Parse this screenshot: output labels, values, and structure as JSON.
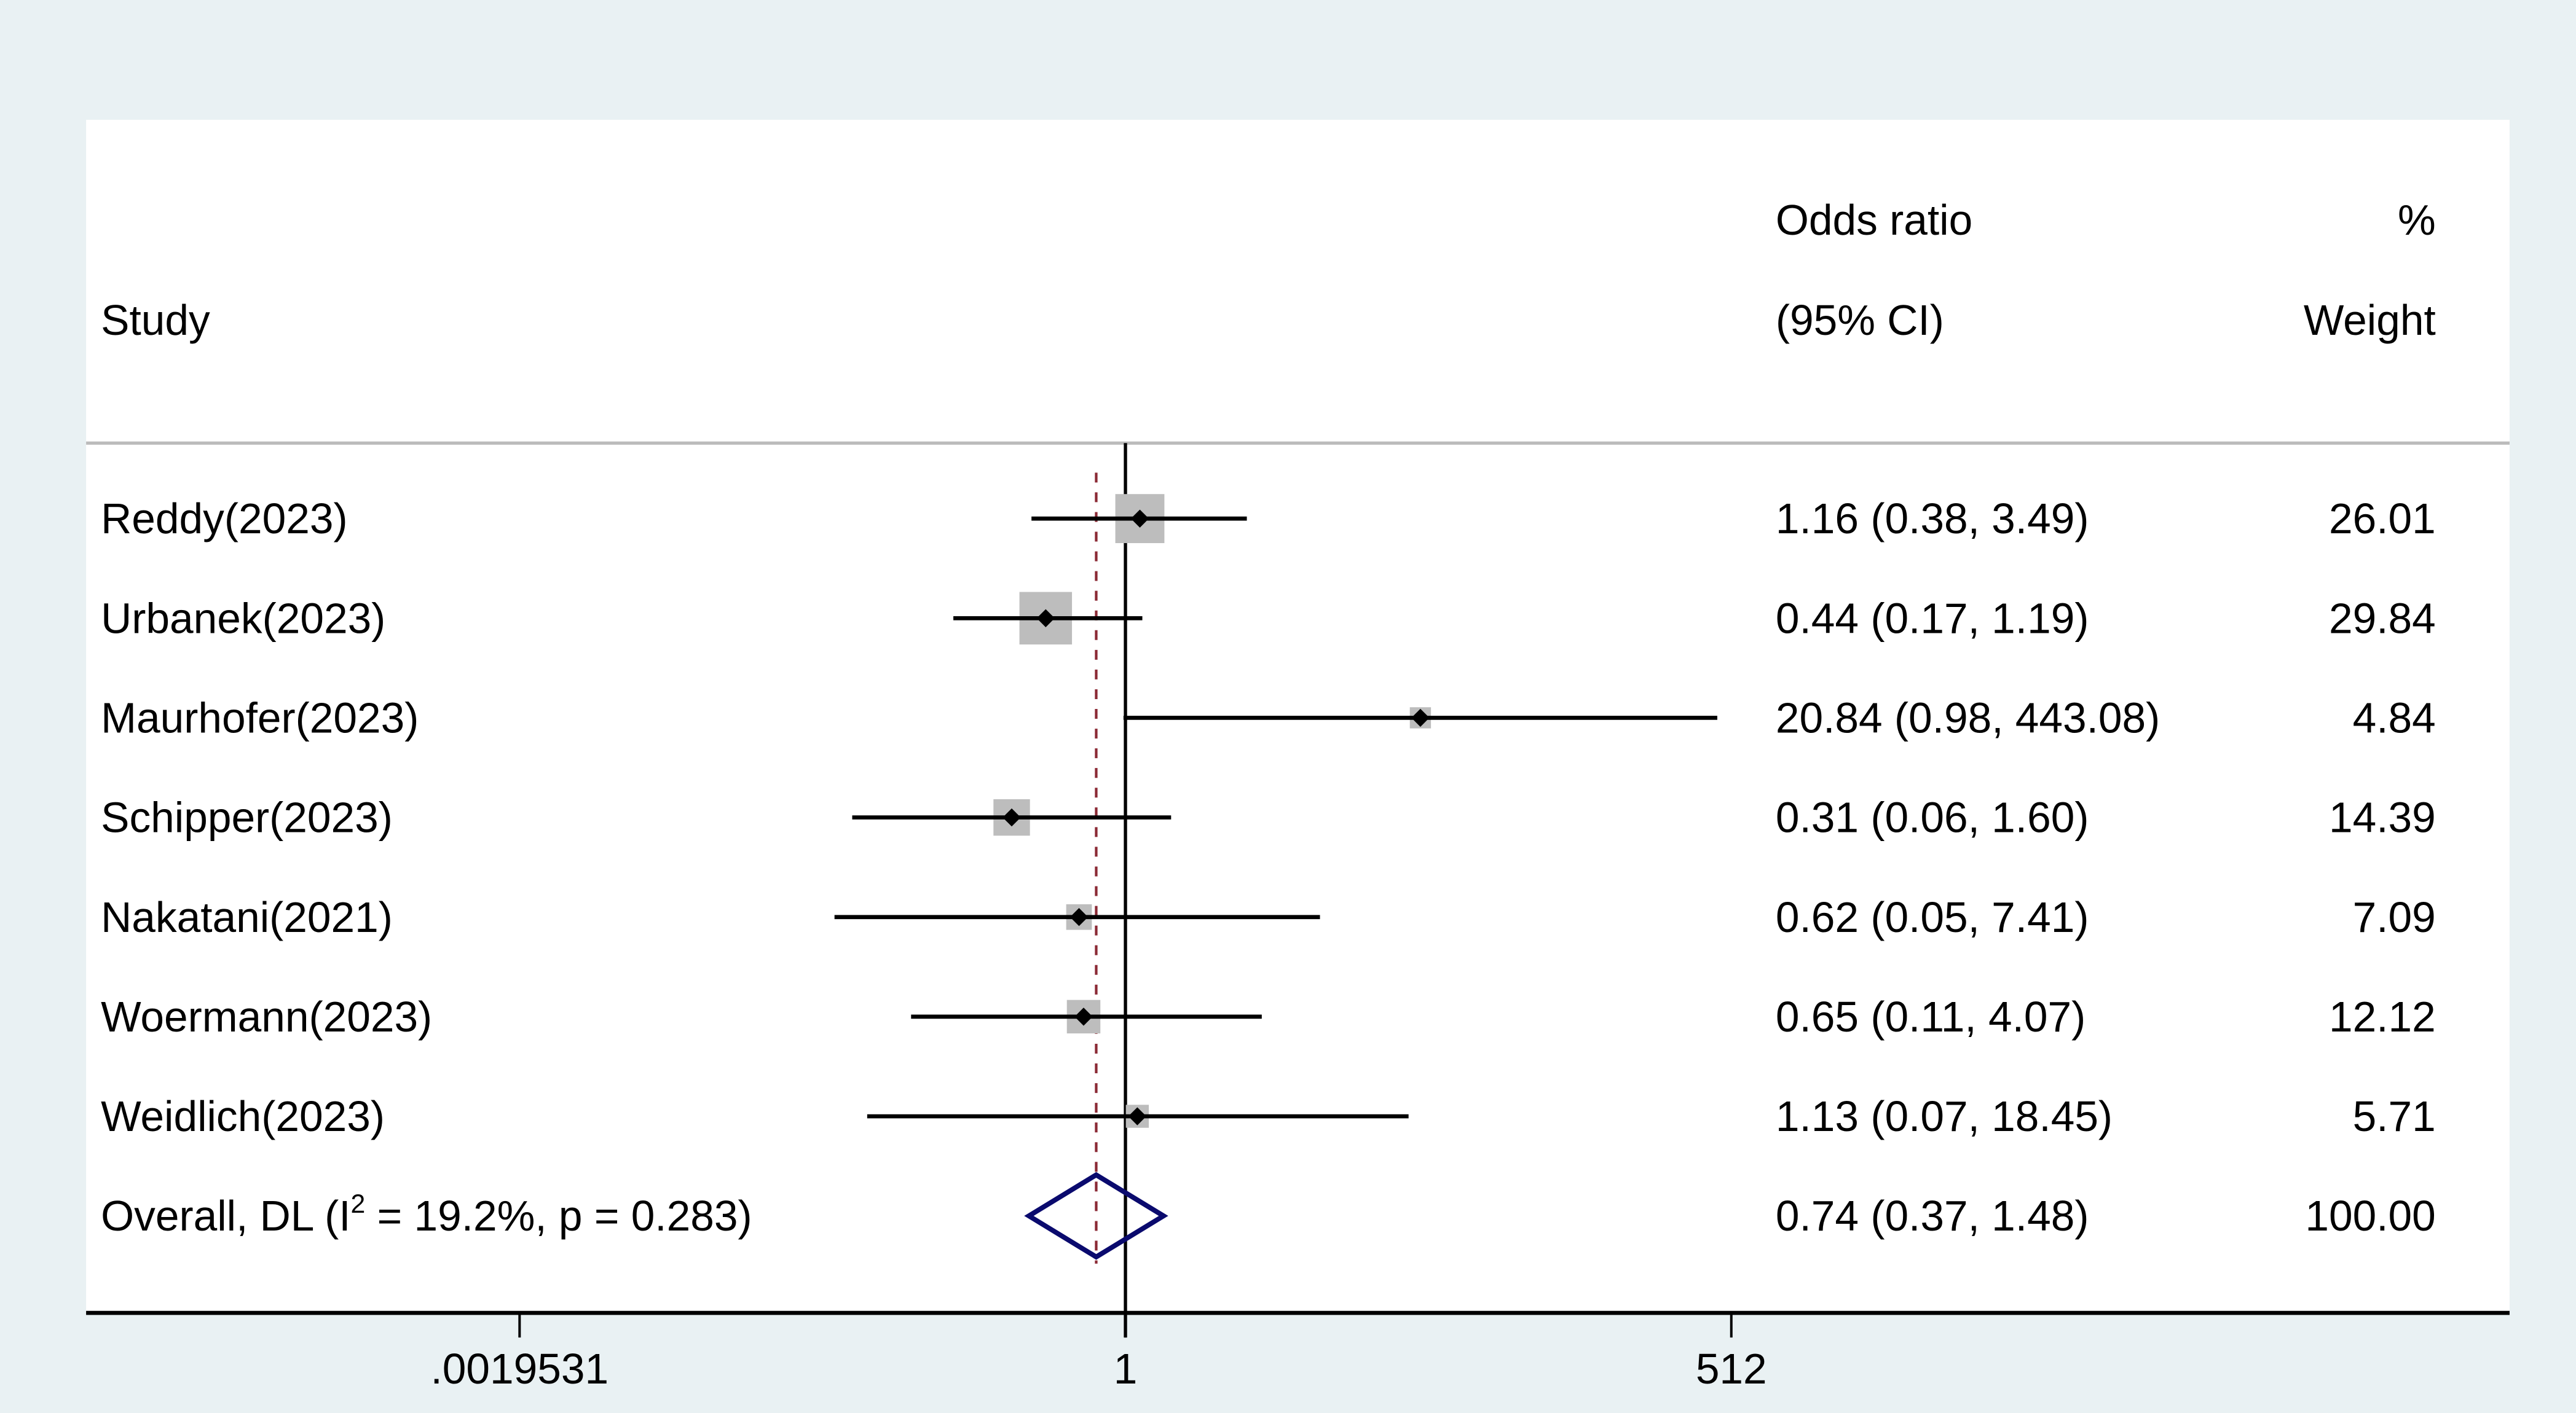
{
  "chart_data": {
    "type": "forest",
    "x_scale": "log2",
    "xlim": [
      0.0019531,
      512
    ],
    "x_ticks": [
      ".0019531",
      "1",
      "512"
    ],
    "x_tick_values": [
      0.0019531,
      1,
      512
    ],
    "null_line": 1,
    "headers": {
      "study": "Study",
      "effect_line1": "Odds ratio",
      "effect_line2": "(95% CI)",
      "weight_line1": "%",
      "weight_line2": "Weight"
    },
    "studies": [
      {
        "name": "Reddy(2023)",
        "or": 1.16,
        "lower": 0.38,
        "upper": 3.49,
        "ci_text": "1.16 (0.38, 3.49)",
        "weight": "26.01"
      },
      {
        "name": "Urbanek(2023)",
        "or": 0.44,
        "lower": 0.17,
        "upper": 1.19,
        "ci_text": "0.44 (0.17, 1.19)",
        "weight": "29.84"
      },
      {
        "name": "Maurhofer(2023)",
        "or": 20.84,
        "lower": 0.98,
        "upper": 443.08,
        "ci_text": "20.84 (0.98, 443.08)",
        "weight": "4.84"
      },
      {
        "name": "Schipper(2023)",
        "or": 0.31,
        "lower": 0.06,
        "upper": 1.6,
        "ci_text": "0.31 (0.06, 1.60)",
        "weight": "14.39"
      },
      {
        "name": "Nakatani(2021)",
        "or": 0.62,
        "lower": 0.05,
        "upper": 7.41,
        "ci_text": "0.62 (0.05, 7.41)",
        "weight": "7.09"
      },
      {
        "name": "Woermann(2023)",
        "or": 0.65,
        "lower": 0.11,
        "upper": 4.07,
        "ci_text": "0.65 (0.11, 4.07)",
        "weight": "12.12"
      },
      {
        "name": "Weidlich(2023)",
        "or": 1.13,
        "lower": 0.07,
        "upper": 18.45,
        "ci_text": "1.13 (0.07, 18.45)",
        "weight": "5.71"
      }
    ],
    "overall": {
      "label_prefix": "Overall, DL (I",
      "label_sup": "2",
      "label_suffix": " = 19.2%, p = 0.283)",
      "or": 0.74,
      "lower": 0.37,
      "upper": 1.48,
      "ci_text": "0.74 (0.37, 1.48)",
      "weight": "100.00"
    },
    "colors": {
      "background": "#e9f1f3",
      "panel": "#ffffff",
      "weight_box": "#bdbdbd",
      "diamond": "#0a0a6e",
      "overall_line": "#8b2a35"
    }
  }
}
